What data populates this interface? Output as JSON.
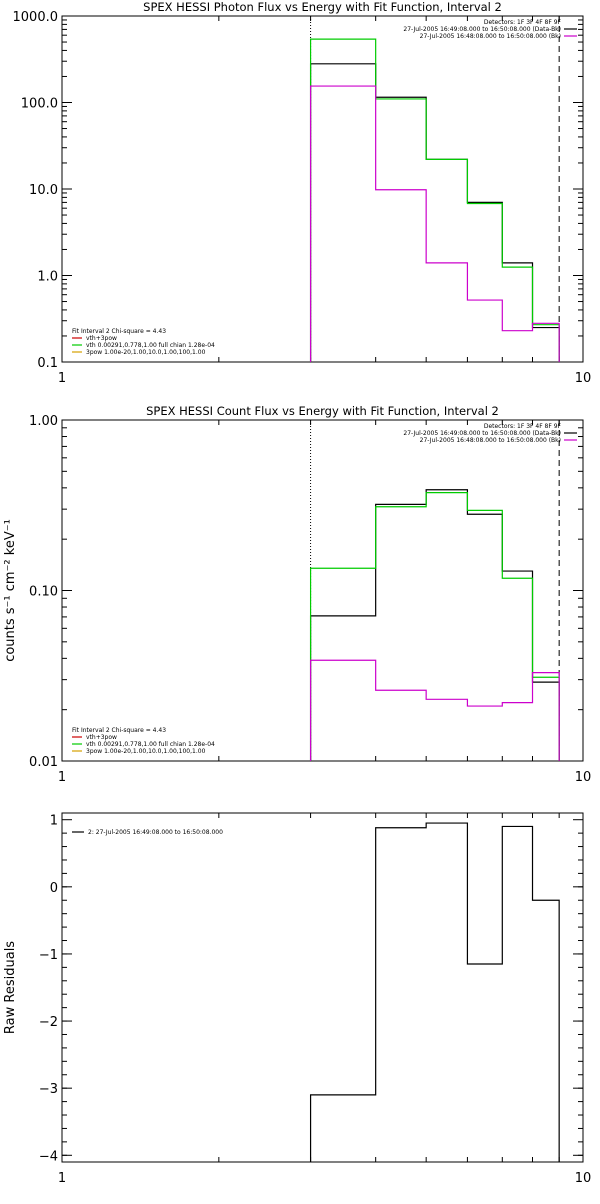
{
  "chart_data": [
    {
      "type": "line",
      "title": "SPEX HESSI Photon Flux vs Energy with Fit Function, Interval 2",
      "xscale": "log",
      "yscale": "log",
      "xlim": [
        1,
        10
      ],
      "ylim": [
        0.1,
        1000
      ],
      "xticks": [
        {
          "v": 1,
          "label": "1"
        },
        {
          "v": 10,
          "label": "10"
        }
      ],
      "yticks": [
        {
          "v": 0.1,
          "label": "0.1"
        },
        {
          "v": 1,
          "label": "1.0"
        },
        {
          "v": 10,
          "label": "10.0"
        },
        {
          "v": 100,
          "label": "100.0"
        },
        {
          "v": 1000,
          "label": "1000.0"
        }
      ],
      "ylabel": "",
      "vlines": [
        {
          "x": 3,
          "style": "dotted"
        },
        {
          "x": 9,
          "style": "dashed"
        }
      ],
      "legend_top": [
        {
          "text": "Detectors: 1F 3F 4F 8F 9F",
          "color": ""
        },
        {
          "text": "27-Jul-2005 16:49:08.000 to 16:50:08.000 (Data-Bk)",
          "color": "#000000"
        },
        {
          "text": "27-Jul-2005 16:48:08.000 to 16:50:08.000 (Bk)",
          "color": "#cc00cc"
        }
      ],
      "legend_bottom": [
        {
          "text": "Fit Interval 2   Chi-square = 4.43",
          "color": ""
        },
        {
          "text": "vth+3pow",
          "color": "#cc0000"
        },
        {
          "text": "vth 0.00291,0.778,1.00   full chian 1.28e-04",
          "color": "#00cc00"
        },
        {
          "text": "3pow 1.00e-20,1.00,10.0,1.00,100,1.00",
          "color": "#d4a000"
        }
      ],
      "series": [
        {
          "color": "#000000",
          "edges": [
            3,
            4,
            5,
            6,
            7,
            8,
            9
          ],
          "values": [
            280,
            115,
            22,
            7,
            1.4,
            0.25
          ]
        },
        {
          "color": "#00cc00",
          "edges": [
            3,
            4,
            5,
            6,
            7,
            8,
            9
          ],
          "values": [
            540,
            110,
            22,
            6.8,
            1.25,
            0.27
          ]
        },
        {
          "color": "#cc00cc",
          "edges": [
            3,
            4,
            5,
            6,
            7,
            8,
            9
          ],
          "values": [
            155,
            9.8,
            1.4,
            0.52,
            0.23,
            0.28
          ]
        }
      ]
    },
    {
      "type": "line",
      "title": "SPEX HESSI Count Flux vs Energy with Fit Function, Interval 2",
      "xscale": "log",
      "yscale": "log",
      "xlim": [
        1,
        10
      ],
      "ylim": [
        0.01,
        1
      ],
      "xticks": [
        {
          "v": 1,
          "label": "1"
        },
        {
          "v": 10,
          "label": "10"
        }
      ],
      "yticks": [
        {
          "v": 0.01,
          "label": "0.01"
        },
        {
          "v": 0.1,
          "label": "0.10"
        },
        {
          "v": 1,
          "label": "1.00"
        }
      ],
      "ylabel": "counts s⁻¹ cm⁻² keV⁻¹",
      "vlines": [
        {
          "x": 3,
          "style": "dotted"
        },
        {
          "x": 9,
          "style": "dashed"
        }
      ],
      "legend_top": [
        {
          "text": "Detectors: 1F 3F 4F 8F 9F",
          "color": ""
        },
        {
          "text": "27-Jul-2005 16:49:08.000 to 16:50:08.000 (Data-Bk)",
          "color": "#000000"
        },
        {
          "text": "27-Jul-2005 16:48:08.000 to 16:50:08.000 (Bk)",
          "color": "#cc00cc"
        }
      ],
      "legend_bottom": [
        {
          "text": "Fit Interval 2   Chi-square = 4.43",
          "color": ""
        },
        {
          "text": "vth+3pow",
          "color": "#cc0000"
        },
        {
          "text": "vth 0.00291,0.778,1.00   full chian 1.28e-04",
          "color": "#00cc00"
        },
        {
          "text": "3pow 1.00e-20,1.00,10.0,1.00,100,1.00",
          "color": "#d4a000"
        }
      ],
      "series": [
        {
          "color": "#000000",
          "edges": [
            3,
            4,
            5,
            6,
            7,
            8,
            9
          ],
          "values": [
            0.071,
            0.32,
            0.39,
            0.28,
            0.13,
            0.029
          ]
        },
        {
          "color": "#00cc00",
          "edges": [
            3,
            4,
            5,
            6,
            7,
            8,
            9
          ],
          "values": [
            0.135,
            0.31,
            0.375,
            0.295,
            0.118,
            0.031
          ]
        },
        {
          "color": "#cc00cc",
          "edges": [
            3,
            4,
            5,
            6,
            7,
            8,
            9
          ],
          "values": [
            0.039,
            0.026,
            0.023,
            0.021,
            0.022,
            0.033
          ]
        }
      ]
    },
    {
      "type": "line",
      "title": "",
      "xscale": "log",
      "yscale": "linear",
      "xlim": [
        1,
        10
      ],
      "ylim": [
        -4.1,
        1.1
      ],
      "xticks": [
        {
          "v": 1,
          "label": "1"
        },
        {
          "v": 10,
          "label": "10"
        }
      ],
      "yticks": [
        {
          "v": 1,
          "label": "1"
        },
        {
          "v": 0,
          "label": "0"
        },
        {
          "v": -1,
          "label": "−1"
        },
        {
          "v": -2,
          "label": "−2"
        },
        {
          "v": -3,
          "label": "−3"
        },
        {
          "v": -4,
          "label": "−4"
        }
      ],
      "ylabel": "Raw Residuals",
      "vlines": [],
      "legend_top": [
        {
          "text": "2: 27-Jul-2005 16:49:08.000 to 16:50:08.000",
          "color": "#000000"
        }
      ],
      "legend_bottom": [],
      "series": [
        {
          "color": "#000000",
          "edges": [
            3,
            4,
            5,
            6,
            7,
            8,
            9
          ],
          "values": [
            -3.1,
            0.88,
            0.95,
            -1.15,
            0.9,
            -0.2
          ]
        }
      ]
    }
  ]
}
